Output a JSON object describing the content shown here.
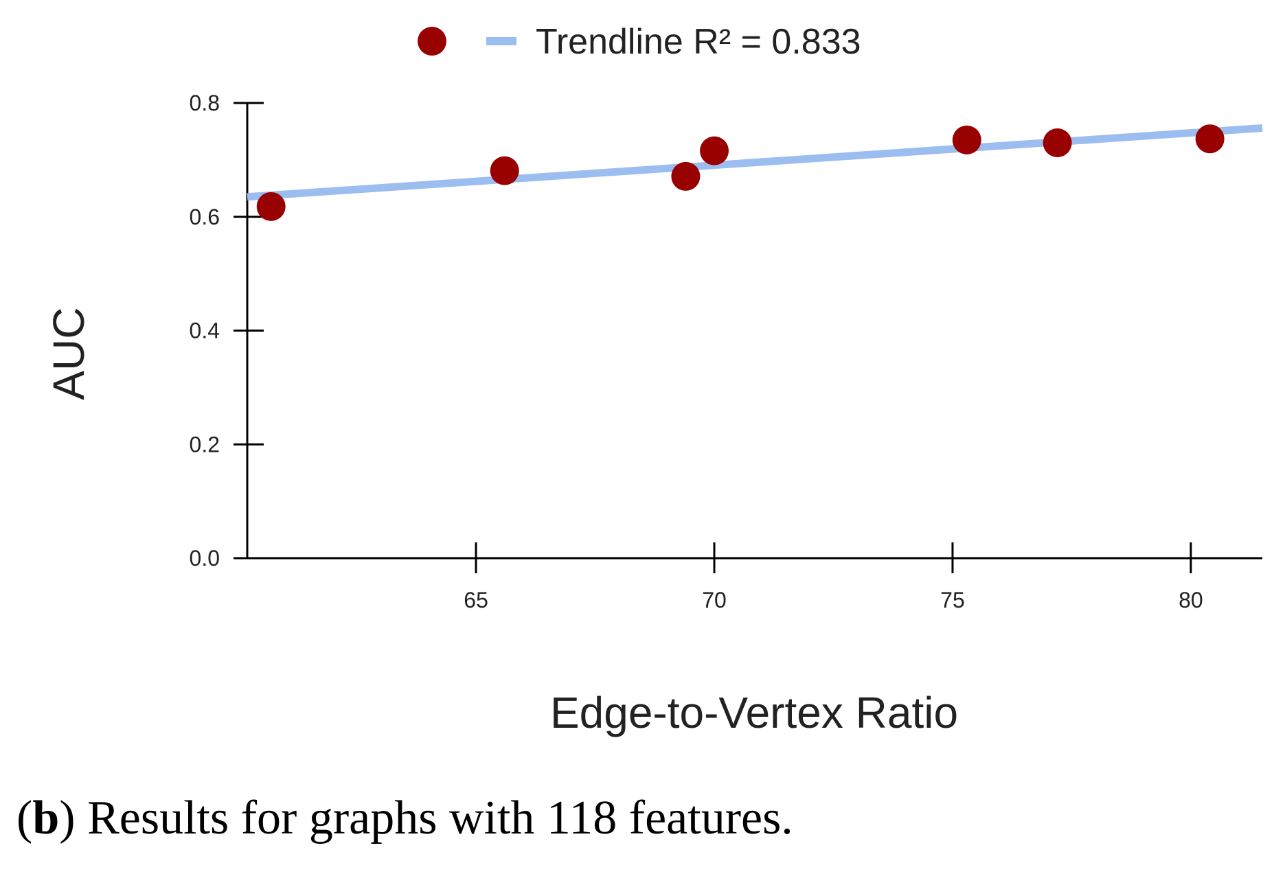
{
  "chart_data": {
    "type": "scatter",
    "xlabel": "Edge-to-Vertex Ratio",
    "ylabel": "AUC",
    "xlim": [
      60.2,
      81.5
    ],
    "ylim": [
      0,
      0.8
    ],
    "x_ticks": [
      "65",
      "70",
      "75",
      "80"
    ],
    "y_ticks": [
      "0.0",
      "0.2",
      "0.4",
      "0.6",
      "0.8"
    ],
    "points": [
      {
        "x": 60.7,
        "y": 0.618
      },
      {
        "x": 65.6,
        "y": 0.681
      },
      {
        "x": 69.4,
        "y": 0.671
      },
      {
        "x": 70.0,
        "y": 0.716
      },
      {
        "x": 75.3,
        "y": 0.735
      },
      {
        "x": 77.2,
        "y": 0.73
      },
      {
        "x": 80.4,
        "y": 0.737
      }
    ],
    "trendline": {
      "label": "Trendline R² = 0.833",
      "x": [
        60.2,
        81.5
      ],
      "y": [
        0.635,
        0.756
      ]
    },
    "legend": {
      "position": "top-center",
      "entries": [
        "Trendline R² = 0.833"
      ]
    },
    "colors": {
      "points": "#990000",
      "trendline": "#9bbdf0",
      "axis": "#000000"
    },
    "grid": false
  },
  "caption": {
    "panel": "b",
    "text": "Results for graphs with 118 features."
  }
}
